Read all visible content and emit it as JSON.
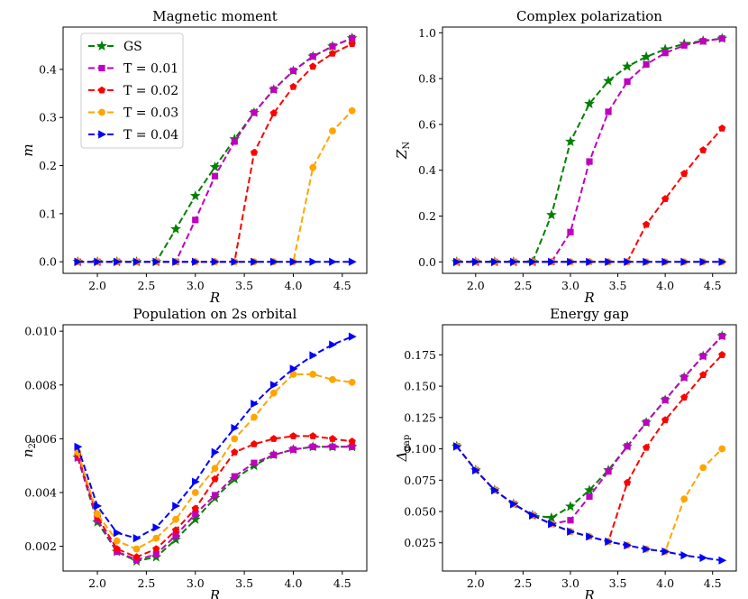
{
  "chart_data": [
    {
      "type": "line",
      "title": "Magnetic moment",
      "xlabel": "R",
      "ylabel": "m",
      "xlim": [
        1.65,
        4.75
      ],
      "ylim": [
        -0.024,
        0.488
      ],
      "xticks": [
        2.0,
        2.5,
        3.0,
        3.5,
        4.0,
        4.5
      ],
      "xtick_labels": [
        "2.0",
        "2.5",
        "3.0",
        "3.5",
        "4.0",
        "4.5"
      ],
      "yticks": [
        0.0,
        0.1,
        0.2,
        0.3,
        0.4
      ],
      "ytick_labels": [
        "0.0",
        "0.1",
        "0.2",
        "0.3",
        "0.4"
      ],
      "legend": true,
      "x": [
        1.8,
        2.0,
        2.2,
        2.4,
        2.6,
        2.8,
        3.0,
        3.2,
        3.4,
        3.6,
        3.8,
        4.0,
        4.2,
        4.4,
        4.6
      ],
      "series": [
        {
          "name": "GS",
          "color": "#008000",
          "marker": "star",
          "values": [
            0,
            0,
            0,
            0,
            0,
            0.068,
            0.137,
            0.197,
            0.255,
            0.31,
            0.358,
            0.397,
            0.427,
            0.448,
            0.465
          ]
        },
        {
          "name": "T = 0.01",
          "color": "#bf00bf",
          "marker": "square",
          "values": [
            0,
            0,
            0,
            0,
            0,
            0,
            0.087,
            0.178,
            0.25,
            0.31,
            0.358,
            0.397,
            0.427,
            0.448,
            0.465
          ]
        },
        {
          "name": "T = 0.02",
          "color": "#ff0000",
          "marker": "pentagon",
          "values": [
            0,
            0,
            0,
            0,
            0,
            0,
            0,
            0,
            0,
            0.227,
            0.309,
            0.364,
            0.406,
            0.433,
            0.453
          ]
        },
        {
          "name": "T = 0.03",
          "color": "#ffa500",
          "marker": "circle",
          "values": [
            0,
            0,
            0,
            0,
            0,
            0,
            0,
            0,
            0,
            0,
            0,
            0,
            0.196,
            0.272,
            0.314
          ]
        },
        {
          "name": "T = 0.04",
          "color": "#0000ff",
          "marker": "triangle-right",
          "values": [
            0,
            0,
            0,
            0,
            0,
            0,
            0,
            0,
            0,
            0,
            0,
            0,
            0,
            0,
            0
          ]
        }
      ]
    },
    {
      "type": "line",
      "title": "Complex polarization",
      "xlabel": "R",
      "ylabel": "Z_N",
      "xlim": [
        1.65,
        4.75
      ],
      "ylim": [
        -0.05,
        1.025
      ],
      "xticks": [
        2.0,
        2.5,
        3.0,
        3.5,
        4.0,
        4.5
      ],
      "xtick_labels": [
        "2.0",
        "2.5",
        "3.0",
        "3.5",
        "4.0",
        "4.5"
      ],
      "yticks": [
        0.0,
        0.2,
        0.4,
        0.6,
        0.8,
        1.0
      ],
      "ytick_labels": [
        "0.0",
        "0.2",
        "0.4",
        "0.6",
        "0.8",
        "1.0"
      ],
      "legend": false,
      "x": [
        1.8,
        2.0,
        2.2,
        2.4,
        2.6,
        2.8,
        3.0,
        3.2,
        3.4,
        3.6,
        3.8,
        4.0,
        4.2,
        4.4,
        4.6
      ],
      "series": [
        {
          "name": "GS",
          "color": "#008000",
          "marker": "star",
          "values": [
            0,
            0,
            0,
            0,
            0,
            0.205,
            0.525,
            0.69,
            0.79,
            0.853,
            0.895,
            0.928,
            0.952,
            0.965,
            0.975
          ]
        },
        {
          "name": "T = 0.01",
          "color": "#bf00bf",
          "marker": "square",
          "values": [
            0,
            0,
            0,
            0,
            0,
            0,
            0.13,
            0.438,
            0.655,
            0.787,
            0.862,
            0.912,
            0.945,
            0.963,
            0.975
          ]
        },
        {
          "name": "T = 0.02",
          "color": "#ff0000",
          "marker": "pentagon",
          "values": [
            0,
            0,
            0,
            0,
            0,
            0,
            0,
            0,
            0,
            0,
            0.163,
            0.275,
            0.385,
            0.488,
            0.583
          ]
        },
        {
          "name": "T = 0.03",
          "color": "#ffa500",
          "marker": "circle",
          "values": [
            0,
            0,
            0,
            0,
            0,
            0,
            0,
            0,
            0,
            0,
            0,
            0,
            0,
            0,
            0
          ]
        },
        {
          "name": "T = 0.04",
          "color": "#0000ff",
          "marker": "triangle-right",
          "values": [
            0,
            0,
            0,
            0,
            0,
            0,
            0,
            0,
            0,
            0,
            0,
            0,
            0,
            0,
            0
          ]
        }
      ]
    },
    {
      "type": "line",
      "title": "Population on 2s orbital",
      "xlabel": "R",
      "ylabel": "n_2s",
      "xlim": [
        1.65,
        4.75
      ],
      "ylim": [
        0.00108,
        0.01024
      ],
      "xticks": [
        2.0,
        2.5,
        3.0,
        3.5,
        4.0,
        4.5
      ],
      "xtick_labels": [
        "2.0",
        "2.5",
        "3.0",
        "3.5",
        "4.0",
        "4.5"
      ],
      "yticks": [
        0.002,
        0.004,
        0.006,
        0.008,
        0.01
      ],
      "ytick_labels": [
        "0.002",
        "0.004",
        "0.006",
        "0.008",
        "0.010"
      ],
      "legend": false,
      "x": [
        1.8,
        2.0,
        2.2,
        2.4,
        2.6,
        2.8,
        3.0,
        3.2,
        3.4,
        3.6,
        3.8,
        4.0,
        4.2,
        4.4,
        4.6
      ],
      "series": [
        {
          "name": "GS",
          "color": "#008000",
          "marker": "star",
          "values": [
            0.0053,
            0.0029,
            0.0018,
            0.00145,
            0.0016,
            0.00225,
            0.003,
            0.0038,
            0.0045,
            0.005,
            0.0054,
            0.0056,
            0.0057,
            0.0057,
            0.0057
          ]
        },
        {
          "name": "T = 0.01",
          "color": "#bf00bf",
          "marker": "square",
          "values": [
            0.0053,
            0.003,
            0.0018,
            0.0015,
            0.0017,
            0.0024,
            0.0032,
            0.0039,
            0.0046,
            0.0051,
            0.0054,
            0.0056,
            0.0057,
            0.0057,
            0.0057
          ]
        },
        {
          "name": "T = 0.02",
          "color": "#ff0000",
          "marker": "pentagon",
          "values": [
            0.0054,
            0.0031,
            0.0019,
            0.0016,
            0.0019,
            0.0026,
            0.0034,
            0.0045,
            0.0055,
            0.0058,
            0.006,
            0.0061,
            0.0061,
            0.006,
            0.0059
          ]
        },
        {
          "name": "T = 0.03",
          "color": "#ffa500",
          "marker": "circle",
          "values": [
            0.0055,
            0.0032,
            0.0022,
            0.0019,
            0.0023,
            0.003,
            0.004,
            0.0049,
            0.006,
            0.0068,
            0.0077,
            0.0084,
            0.0084,
            0.0082,
            0.0081
          ]
        },
        {
          "name": "T = 0.04",
          "color": "#0000ff",
          "marker": "triangle-right",
          "values": [
            0.0057,
            0.0035,
            0.0025,
            0.0023,
            0.0027,
            0.0035,
            0.0044,
            0.0055,
            0.0064,
            0.0073,
            0.008,
            0.0086,
            0.0091,
            0.0095,
            0.0098
          ]
        }
      ]
    },
    {
      "type": "line",
      "title": "Energy gap",
      "xlabel": "R",
      "ylabel": "Δ_gap",
      "xlim": [
        1.65,
        4.75
      ],
      "ylim": [
        0.0025,
        0.199
      ],
      "xticks": [
        2.0,
        2.5,
        3.0,
        3.5,
        4.0,
        4.5
      ],
      "xtick_labels": [
        "2.0",
        "2.5",
        "3.0",
        "3.5",
        "4.0",
        "4.5"
      ],
      "yticks": [
        0.025,
        0.05,
        0.075,
        0.1,
        0.125,
        0.15,
        0.175
      ],
      "ytick_labels": [
        "0.025",
        "0.050",
        "0.075",
        "0.100",
        "0.125",
        "0.150",
        "0.175"
      ],
      "legend": false,
      "x": [
        1.8,
        2.0,
        2.2,
        2.4,
        2.6,
        2.8,
        3.0,
        3.2,
        3.4,
        3.6,
        3.8,
        4.0,
        4.2,
        4.4,
        4.6
      ],
      "series": [
        {
          "name": "GS",
          "color": "#008000",
          "marker": "star",
          "values": [
            0.102,
            0.083,
            0.067,
            0.056,
            0.047,
            0.045,
            0.054,
            0.067,
            0.083,
            0.102,
            0.121,
            0.139,
            0.157,
            0.174,
            0.19
          ]
        },
        {
          "name": "T = 0.01",
          "color": "#bf00bf",
          "marker": "square",
          "values": [
            0.102,
            0.083,
            0.067,
            0.056,
            0.047,
            0.04,
            0.043,
            0.062,
            0.082,
            0.102,
            0.121,
            0.139,
            0.157,
            0.174,
            0.19
          ]
        },
        {
          "name": "T = 0.02",
          "color": "#ff0000",
          "marker": "pentagon",
          "values": [
            0.102,
            0.083,
            0.067,
            0.056,
            0.047,
            0.04,
            0.034,
            0.03,
            0.026,
            0.073,
            0.101,
            0.123,
            0.141,
            0.159,
            0.175
          ]
        },
        {
          "name": "T = 0.03",
          "color": "#ffa500",
          "marker": "circle",
          "values": [
            0.102,
            0.083,
            0.067,
            0.056,
            0.047,
            0.04,
            0.034,
            0.03,
            0.026,
            0.023,
            0.02,
            0.018,
            0.06,
            0.085,
            0.1
          ]
        },
        {
          "name": "T = 0.04",
          "color": "#0000ff",
          "marker": "triangle-right",
          "values": [
            0.102,
            0.083,
            0.067,
            0.056,
            0.047,
            0.04,
            0.034,
            0.03,
            0.026,
            0.023,
            0.02,
            0.018,
            0.015,
            0.013,
            0.011
          ]
        }
      ]
    }
  ]
}
